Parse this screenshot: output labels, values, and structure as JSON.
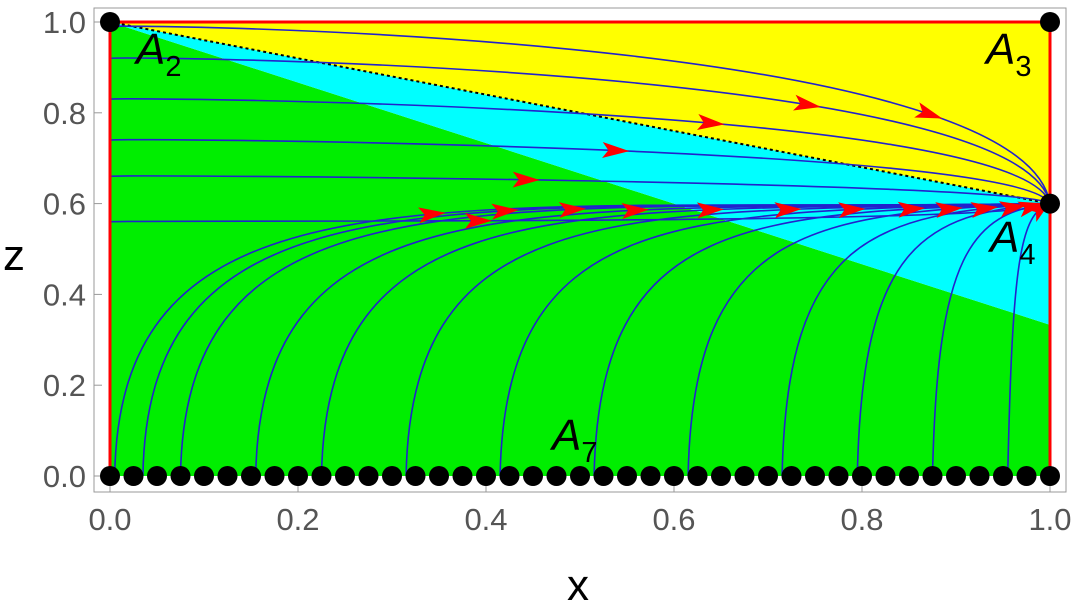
{
  "chart_data": {
    "type": "phase-portrait",
    "xlabel": "x",
    "ylabel": "z",
    "xlim": [
      0.0,
      1.0
    ],
    "ylim": [
      0.0,
      1.0
    ],
    "x_ticks": [
      "0.0",
      "0.2",
      "0.4",
      "0.6",
      "0.8",
      "1.0"
    ],
    "y_ticks": [
      "0.0",
      "0.2",
      "0.4",
      "0.6",
      "0.8",
      "1.0"
    ],
    "regions": [
      {
        "color": "#00ee00",
        "boundary": [
          [
            0.0,
            0.0
          ],
          [
            0.0,
            1.0
          ],
          [
            1.0,
            0.333
          ],
          [
            1.0,
            0.0
          ]
        ]
      },
      {
        "color": "#00ffff",
        "boundary": [
          [
            0.0,
            1.0
          ],
          [
            1.0,
            0.6
          ],
          [
            1.0,
            0.333
          ]
        ]
      },
      {
        "color": "#ffff00",
        "boundary": [
          [
            0.0,
            1.0
          ],
          [
            1.0,
            1.0
          ],
          [
            1.0,
            0.6
          ]
        ]
      }
    ],
    "separatrix": {
      "style": "dotted",
      "from": [
        0.0,
        1.0
      ],
      "to": [
        1.0,
        0.6
      ]
    },
    "invariant_boundary_color": "#ff0000",
    "flow_color": "#2222cc",
    "arrow_color": "#ff0000",
    "critical_points": [
      {
        "name": "A",
        "subscript": "2",
        "x": 0.0,
        "y": 1.0
      },
      {
        "name": "A",
        "subscript": "3",
        "x": 1.0,
        "y": 1.0
      },
      {
        "name": "A",
        "subscript": "4",
        "x": 1.0,
        "y": 0.6
      },
      {
        "name": "A",
        "subscript": "7",
        "x": "0 ≤ x ≤ 1",
        "y": 0.0,
        "kind": "line of critical points"
      }
    ],
    "trajectories_upper": [
      {
        "start_z": 0.99,
        "arrow_x": 0.87
      },
      {
        "start_z": 0.92,
        "arrow_x": 0.74
      },
      {
        "start_z": 0.83,
        "arrow_x": 0.64
      },
      {
        "start_z": 0.74,
        "arrow_x": 0.54
      },
      {
        "start_z": 0.66,
        "arrow_x": 0.44
      },
      {
        "start_z": 0.56,
        "arrow_x": 0.39
      }
    ],
    "trajectories_lower": [
      {
        "start_x": 0.0,
        "arrow_x": 0.34
      },
      {
        "start_x": 0.03,
        "arrow_x": 0.42
      },
      {
        "start_x": 0.07,
        "arrow_x": 0.49
      },
      {
        "start_x": 0.15,
        "arrow_x": 0.56
      },
      {
        "start_x": 0.22,
        "arrow_x": 0.64
      },
      {
        "start_x": 0.31,
        "arrow_x": 0.72
      },
      {
        "start_x": 0.41,
        "arrow_x": 0.79
      },
      {
        "start_x": 0.51,
        "arrow_x": 0.85
      },
      {
        "start_x": 0.61,
        "arrow_x": 0.89
      },
      {
        "start_x": 0.71,
        "arrow_x": 0.93
      },
      {
        "start_x": 0.79,
        "arrow_x": 0.96
      },
      {
        "start_x": 0.87,
        "arrow_x": 0.98
      },
      {
        "start_x": 0.95,
        "arrow_x": 0.99
      }
    ],
    "line_points_x": [
      0.0,
      0.025,
      0.05,
      0.075,
      0.1,
      0.125,
      0.15,
      0.175,
      0.2,
      0.225,
      0.25,
      0.275,
      0.3,
      0.325,
      0.35,
      0.375,
      0.4,
      0.425,
      0.45,
      0.475,
      0.5,
      0.525,
      0.55,
      0.575,
      0.6,
      0.625,
      0.65,
      0.675,
      0.7,
      0.725,
      0.75,
      0.775,
      0.8,
      0.825,
      0.85,
      0.875,
      0.9,
      0.925,
      0.95,
      0.975,
      1.0
    ]
  }
}
